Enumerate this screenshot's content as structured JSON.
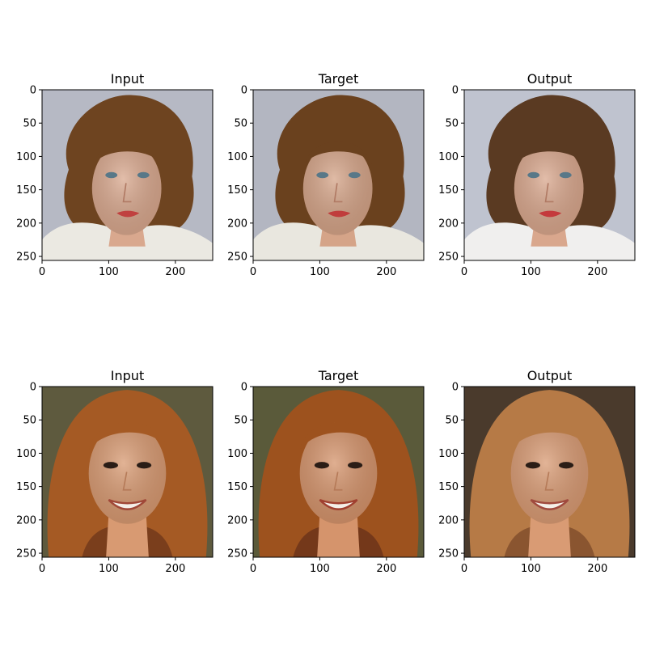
{
  "figure": {
    "rows": [
      {
        "panels": [
          {
            "title": "Input",
            "photo": {
              "subject": "curly-auburn-haired woman, white scarf",
              "palette": {
                "bg": "#b6b9c4",
                "hair": "#6e4420",
                "skin": "#d9a88e",
                "clothes": "#ebe9e2",
                "lips": "#c0413f",
                "eyes": "#587888"
              }
            }
          },
          {
            "title": "Target",
            "photo": {
              "subject": "curly-auburn-haired woman, white scarf",
              "palette": {
                "bg": "#b3b6c1",
                "hair": "#6a411e",
                "skin": "#d5a488",
                "clothes": "#e9e7df",
                "lips": "#c03d3c",
                "eyes": "#587888"
              }
            }
          },
          {
            "title": "Output",
            "photo": {
              "subject": "curly-auburn-haired woman, white top",
              "palette": {
                "bg": "#bfc3cf",
                "hair": "#5a3a22",
                "skin": "#d9a78d",
                "clothes": "#f0efee",
                "lips": "#c43a3c",
                "eyes": "#587888"
              }
            }
          }
        ]
      },
      {
        "panels": [
          {
            "title": "Input",
            "photo": {
              "subject": "smiling woman with long auburn hair",
              "palette": {
                "bg": "#5e5a3e",
                "hair": "#a55a24",
                "skin": "#d89a72",
                "clothes": "#7a3e1c",
                "lips": "#a04838",
                "eyes": "#2a1d16"
              }
            }
          },
          {
            "title": "Target",
            "photo": {
              "subject": "smiling woman with long auburn hair",
              "palette": {
                "bg": "#5a5a3a",
                "hair": "#9d521e",
                "skin": "#d5946c",
                "clothes": "#74381a",
                "lips": "#a04030",
                "eyes": "#2a1d16"
              }
            }
          },
          {
            "title": "Output",
            "photo": {
              "subject": "smiling woman with long light-auburn hair",
              "palette": {
                "bg": "#4a3a2c",
                "hair": "#b67a46",
                "skin": "#d99b74",
                "clothes": "#8a5530",
                "lips": "#a04a3e",
                "eyes": "#2a1d16"
              }
            }
          }
        ]
      }
    ],
    "axes": {
      "x_ticks": [
        "0",
        "100",
        "200"
      ],
      "y_ticks": [
        "0",
        "50",
        "100",
        "150",
        "200",
        "250"
      ],
      "x_tick_values": [
        0,
        100,
        200
      ],
      "y_tick_values": [
        0,
        50,
        100,
        150,
        200,
        250
      ],
      "extent": [
        0,
        256
      ]
    }
  }
}
